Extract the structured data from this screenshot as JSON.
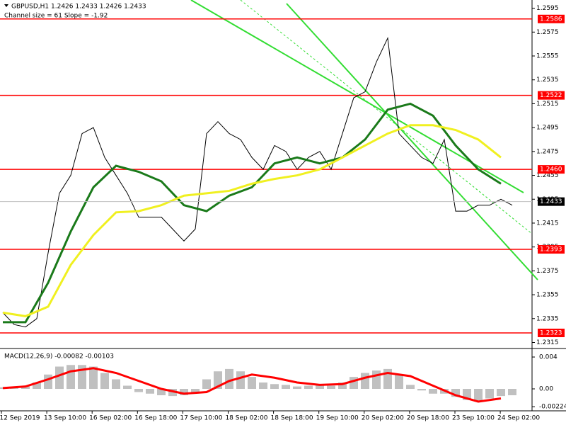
{
  "chart_data": [
    {
      "type": "line",
      "title": "GBPUSD,H1  1.2426 1.2433 1.2426 1.2433",
      "subtitle": "Channel size = 61 Slope = -1.92",
      "time_labels": [
        "12 Sep 2019",
        "13 Sep 10:00",
        "16 Sep 02:00",
        "16 Sep 18:00",
        "17 Sep 10:00",
        "18 Sep 02:00",
        "18 Sep 18:00",
        "19 Sep 10:00",
        "20 Sep 02:00",
        "20 Sep 18:00",
        "23 Sep 10:00",
        "24 Sep 02:00"
      ],
      "ylim": [
        1.23147,
        1.26147
      ],
      "yticks": [
        1.2595,
        1.2575,
        1.2555,
        1.2535,
        1.2515,
        1.2495,
        1.2475,
        1.2455,
        1.2435,
        1.2415,
        1.2395,
        1.2375,
        1.2355,
        1.2335,
        1.2315
      ],
      "levels": [
        1.2586,
        1.2522,
        {
          "value": 1.246,
          "label": "1.2460"
        },
        1.2393,
        1.2323
      ],
      "level_color": "#ff0000",
      "price": 1.2433,
      "series": [
        {
          "color": "#000000",
          "values": [
            1.234,
            1.233,
            1.2328,
            1.2335,
            1.239,
            1.244,
            1.2455,
            1.249,
            1.2495,
            1.247,
            1.2455,
            1.244,
            1.242,
            1.242,
            1.242,
            1.241,
            1.24,
            1.241,
            1.249,
            1.25,
            1.249,
            1.2485,
            1.247,
            1.246,
            1.248,
            1.2475,
            1.246,
            1.247,
            1.2475,
            1.246,
            1.249,
            1.252,
            1.2525,
            1.255,
            1.257,
            1.249,
            1.248,
            1.247,
            1.2465,
            1.2485,
            1.2425,
            1.2425,
            1.243,
            1.243,
            1.2435,
            1.243
          ]
        },
        {
          "color": "#1a7a1a",
          "step": 2,
          "values": [
            1.2332,
            1.2332,
            1.2365,
            1.2408,
            1.2445,
            1.2463,
            1.2458,
            1.245,
            1.243,
            1.2425,
            1.2438,
            1.2445,
            1.2465,
            1.247,
            1.2465,
            1.247,
            1.2485,
            1.251,
            1.2515,
            1.2505,
            1.248,
            1.246,
            1.2448
          ]
        },
        {
          "color": "#f0f020",
          "step": 2,
          "values": [
            1.234,
            1.2337,
            1.2345,
            1.238,
            1.2405,
            1.2424,
            1.2425,
            1.243,
            1.2438,
            1.244,
            1.2442,
            1.2448,
            1.2452,
            1.2455,
            1.246,
            1.247,
            1.248,
            1.249,
            1.2497,
            1.2497,
            1.2493,
            1.2485,
            1.247
          ]
        }
      ]
    },
    {
      "type": "bar",
      "title": "MACD(12,26,9) -0.00082 -0.00103",
      "ylim": [
        -0.00258,
        0.00507
      ],
      "yticks": [
        0.004,
        {
          "value": 0,
          "label": "0.00"
        },
        -0.00224
      ],
      "color": "#c0c0c0",
      "values": [
        0.0002,
        0.0002,
        0.0003,
        0.0008,
        0.0018,
        0.0028,
        0.003,
        0.003,
        0.0028,
        0.002,
        0.0012,
        0.0004,
        -0.0004,
        -0.0006,
        -0.0008,
        -0.0009,
        -0.0008,
        -0.0004,
        0.0012,
        0.0022,
        0.0025,
        0.0022,
        0.0015,
        0.0008,
        0.0006,
        0.0005,
        0.0003,
        0.0004,
        0.0005,
        0.0004,
        0.0008,
        0.0015,
        0.002,
        0.0023,
        0.0025,
        0.0018,
        0.0005,
        -0.0002,
        -0.0006,
        -0.0006,
        -0.001,
        -0.0014,
        -0.0015,
        -0.0012,
        -0.0009,
        -0.0008
      ],
      "signal": {
        "color": "#ff0000",
        "step": 2,
        "values": [
          0.0001,
          0.0003,
          0.0012,
          0.0022,
          0.0026,
          0.002,
          0.001,
          0.0,
          -0.0006,
          -0.0004,
          0.001,
          0.0018,
          0.0014,
          0.0008,
          0.0005,
          0.0006,
          0.0014,
          0.002,
          0.0016,
          0.0004,
          -0.0008,
          -0.0016,
          -0.0012
        ]
      }
    }
  ]
}
